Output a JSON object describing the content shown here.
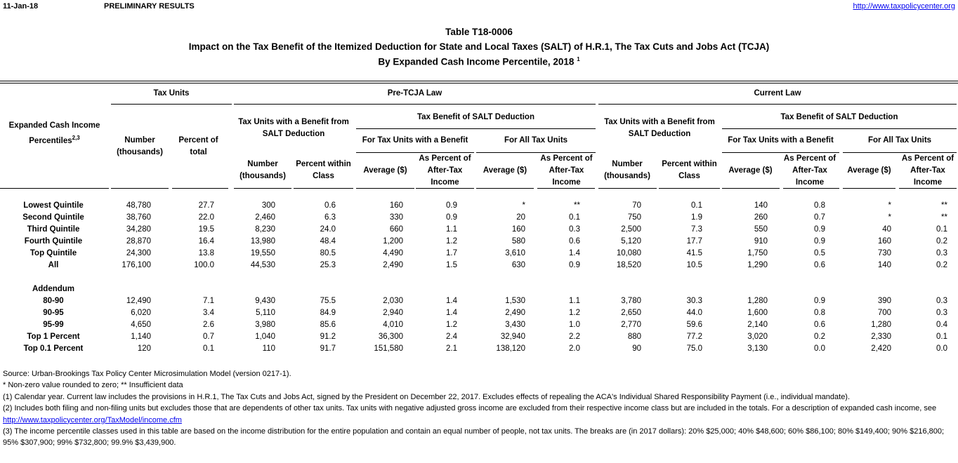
{
  "header": {
    "date": "11-Jan-18",
    "status": "PRELIMINARY RESULTS",
    "url": "http://www.taxpolicycenter.org"
  },
  "title": {
    "table_id": "Table T18-0006",
    "main": "Impact on the Tax Benefit of the Itemized Deduction for State and Local Taxes (SALT) of H.R.1, The Tax Cuts and Jobs Act (TCJA)",
    "sub": "By Expanded Cash Income Percentile, 2018",
    "sub_note": "1"
  },
  "columns": {
    "stub": "Expanded Cash Income Percentiles",
    "stub_note": "2,3",
    "tax_units": {
      "label": "Tax Units",
      "number": "Number (thousands)",
      "percent": "Percent of total"
    },
    "pre": {
      "label": "Pre-TCJA Law",
      "with_benefit": {
        "label": "Tax Units with a Benefit from SALT Deduction",
        "number": "Number (thousands)",
        "percent": "Percent within Class"
      },
      "benefit": {
        "label": "Tax Benefit of SALT Deduction",
        "with": {
          "label": "For Tax Units with a Benefit",
          "average": "Average ($)",
          "percent": "As Percent of After-Tax Income"
        },
        "all": {
          "label": "For All Tax Units",
          "average": "Average ($)",
          "percent": "As Percent of After-Tax Income"
        }
      }
    },
    "current": {
      "label": "Current Law",
      "with_benefit": {
        "label": "Tax Units with a Benefit from SALT Deduction",
        "number": "Number (thousands)",
        "percent": "Percent within Class"
      },
      "benefit": {
        "label": "Tax Benefit of SALT Deduction",
        "with": {
          "label": "For Tax Units with a Benefit",
          "average": "Average ($)",
          "percent": "As Percent of After-Tax Income"
        },
        "all": {
          "label": "For All Tax Units",
          "average": "Average ($)",
          "percent": "As Percent of After-Tax Income"
        }
      }
    }
  },
  "rows": [
    {
      "label": "Lowest Quintile",
      "values": [
        "48,780",
        "27.7",
        "300",
        "0.6",
        "160",
        "0.9",
        "*",
        "**",
        "70",
        "0.1",
        "140",
        "0.8",
        "*",
        "**"
      ]
    },
    {
      "label": "Second Quintile",
      "values": [
        "38,760",
        "22.0",
        "2,460",
        "6.3",
        "330",
        "0.9",
        "20",
        "0.1",
        "750",
        "1.9",
        "260",
        "0.7",
        "*",
        "**"
      ]
    },
    {
      "label": "Third Quintile",
      "values": [
        "34,280",
        "19.5",
        "8,230",
        "24.0",
        "660",
        "1.1",
        "160",
        "0.3",
        "2,500",
        "7.3",
        "550",
        "0.9",
        "40",
        "0.1"
      ]
    },
    {
      "label": "Fourth Quintile",
      "values": [
        "28,870",
        "16.4",
        "13,980",
        "48.4",
        "1,200",
        "1.2",
        "580",
        "0.6",
        "5,120",
        "17.7",
        "910",
        "0.9",
        "160",
        "0.2"
      ]
    },
    {
      "label": "Top Quintile",
      "values": [
        "24,300",
        "13.8",
        "19,550",
        "80.5",
        "4,490",
        "1.7",
        "3,610",
        "1.4",
        "10,080",
        "41.5",
        "1,750",
        "0.5",
        "730",
        "0.3"
      ]
    },
    {
      "label": "All",
      "values": [
        "176,100",
        "100.0",
        "44,530",
        "25.3",
        "2,490",
        "1.5",
        "630",
        "0.9",
        "18,520",
        "10.5",
        "1,290",
        "0.6",
        "140",
        "0.2"
      ]
    }
  ],
  "addendum_label": "Addendum",
  "addendum_rows": [
    {
      "label": "80-90",
      "values": [
        "12,490",
        "7.1",
        "9,430",
        "75.5",
        "2,030",
        "1.4",
        "1,530",
        "1.1",
        "3,780",
        "30.3",
        "1,280",
        "0.9",
        "390",
        "0.3"
      ]
    },
    {
      "label": "90-95",
      "values": [
        "6,020",
        "3.4",
        "5,110",
        "84.9",
        "2,940",
        "1.4",
        "2,490",
        "1.2",
        "2,650",
        "44.0",
        "1,600",
        "0.8",
        "700",
        "0.3"
      ]
    },
    {
      "label": "95-99",
      "values": [
        "4,650",
        "2.6",
        "3,980",
        "85.6",
        "4,010",
        "1.2",
        "3,430",
        "1.0",
        "2,770",
        "59.6",
        "2,140",
        "0.6",
        "1,280",
        "0.4"
      ]
    },
    {
      "label": "Top 1 Percent",
      "values": [
        "1,140",
        "0.7",
        "1,040",
        "91.2",
        "36,300",
        "2.4",
        "32,940",
        "2.2",
        "880",
        "77.2",
        "3,020",
        "0.2",
        "2,330",
        "0.1"
      ]
    },
    {
      "label": "Top 0.1 Percent",
      "values": [
        "120",
        "0.1",
        "110",
        "91.7",
        "151,580",
        "2.1",
        "138,120",
        "2.0",
        "90",
        "75.0",
        "3,130",
        "0.0",
        "2,420",
        "0.0"
      ]
    }
  ],
  "footnotes": [
    "Source: Urban-Brookings Tax Policy Center Microsimulation Model (version 0217-1).",
    "* Non-zero value rounded to zero; ** Insufficient data",
    "(1) Calendar year. Current law includes the provisions in H.R.1, The Tax Cuts and Jobs Act, signed by the President on December 22, 2017. Excludes effects of repealing the ACA's Individual Shared Responsibility Payment (i.e., individual mandate).",
    "(2) Includes both filing and non-filing units but excludes those that are dependents of other tax units. Tax units with negative adjusted gross income are excluded from their respective income class but are included in the totals. For a description of expanded cash income, see"
  ],
  "footnote_link": "http://www.taxpolicycenter.org/TaxModel/income.cfm",
  "footnote_last": "(3) The income percentile classes used in this table are based on the income distribution for the entire population and contain an equal number of people, not tax units. The breaks are (in 2017 dollars): 20% $25,000; 40% $48,600; 60% $86,100; 80% $149,400; 90% $216,800; 95% $307,900; 99% $732,800; 99.9% $3,439,900."
}
